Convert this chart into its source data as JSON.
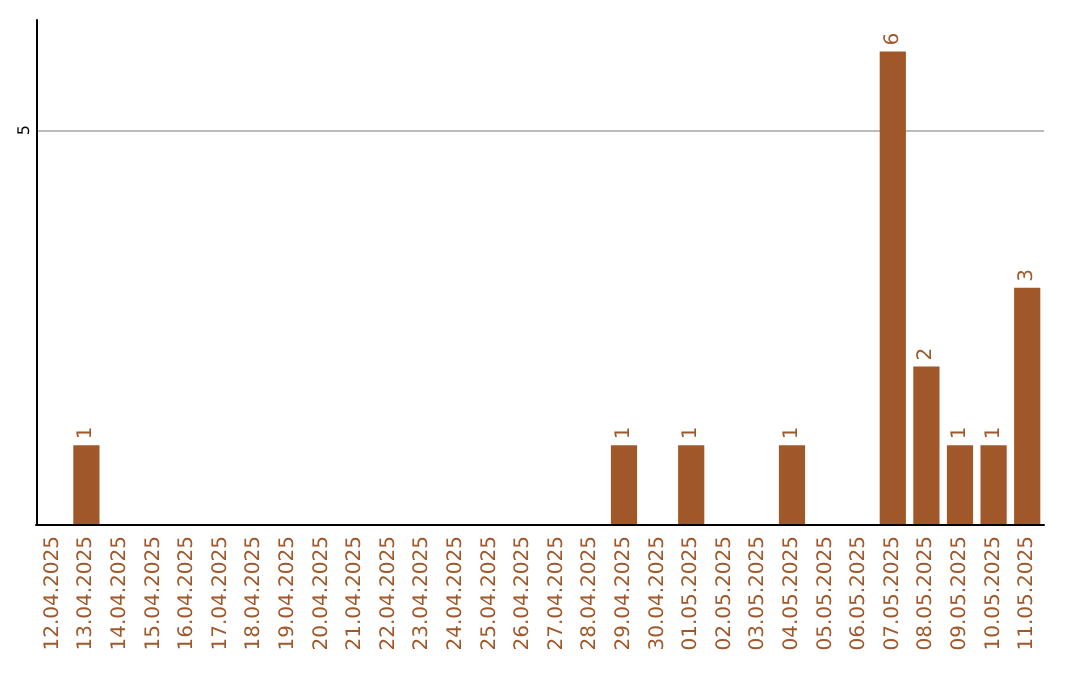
{
  "chart_data": {
    "type": "bar",
    "categories": [
      "12.04.2025",
      "13.04.2025",
      "14.04.2025",
      "15.04.2025",
      "16.04.2025",
      "17.04.2025",
      "18.04.2025",
      "19.04.2025",
      "20.04.2025",
      "21.04.2025",
      "22.04.2025",
      "23.04.2025",
      "24.04.2025",
      "25.04.2025",
      "26.04.2025",
      "27.04.2025",
      "28.04.2025",
      "29.04.2025",
      "30.04.2025",
      "01.05.2025",
      "02.05.2025",
      "03.05.2025",
      "04.05.2025",
      "05.05.2025",
      "06.05.2025",
      "07.05.2025",
      "08.05.2025",
      "09.05.2025",
      "10.05.2025",
      "11.05.2025"
    ],
    "values": [
      0,
      1,
      0,
      0,
      0,
      0,
      0,
      0,
      0,
      0,
      0,
      0,
      0,
      0,
      0,
      0,
      0,
      1,
      0,
      1,
      0,
      0,
      1,
      0,
      0,
      6,
      2,
      1,
      1,
      3
    ],
    "value_labels": [
      null,
      "1",
      null,
      null,
      null,
      null,
      null,
      null,
      null,
      null,
      null,
      null,
      null,
      null,
      null,
      null,
      null,
      "1",
      null,
      "1",
      null,
      null,
      "1",
      null,
      null,
      "6",
      "2",
      "1",
      "1",
      "3"
    ],
    "color": "#a0582a",
    "ylim": [
      0,
      6.4
    ],
    "yticks": [
      5
    ],
    "grid": "y"
  }
}
